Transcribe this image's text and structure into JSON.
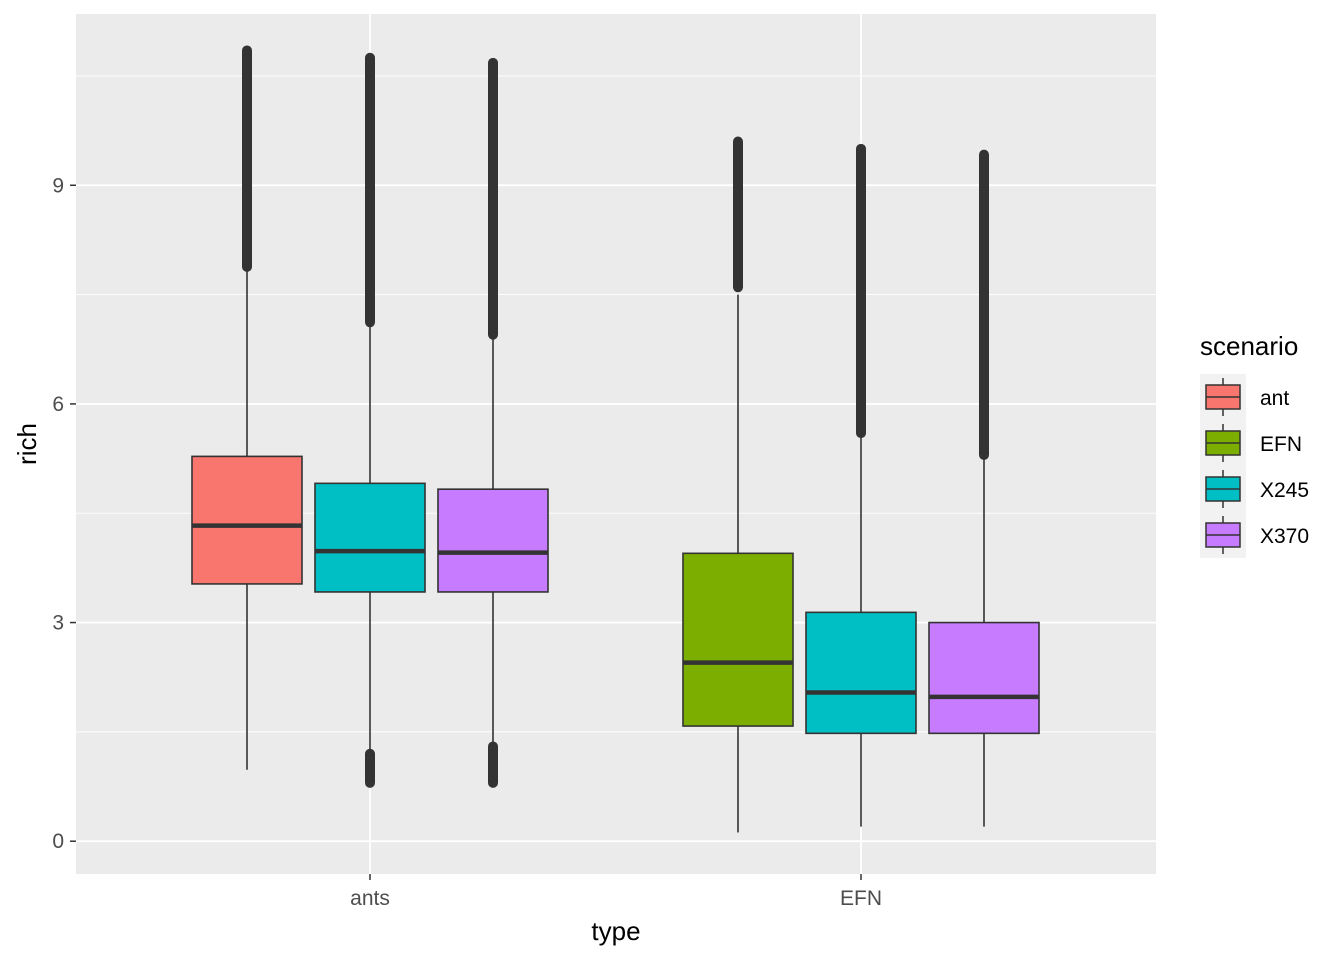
{
  "chart_data": {
    "type": "boxplot",
    "xlabel": "type",
    "ylabel": "rich",
    "ylim": [
      -0.45,
      11.35
    ],
    "y_ticks": [
      0,
      3,
      6,
      9
    ],
    "categories": [
      "ants",
      "EFN"
    ],
    "grid": true,
    "legend": {
      "title": "scenario",
      "position": "right",
      "entries": [
        {
          "name": "ant",
          "color": "#F8766D"
        },
        {
          "name": "EFN",
          "color": "#7CAE00"
        },
        {
          "name": "X245",
          "color": "#00BFC4"
        },
        {
          "name": "X370",
          "color": "#C77CFF"
        }
      ]
    },
    "boxes": [
      {
        "category": "ants",
        "scenario": "ant",
        "color": "#F8766D",
        "whisker_low": 0.98,
        "q1": 3.53,
        "median": 4.33,
        "q3": 5.28,
        "whisker_high": 7.88,
        "outliers_high": [
          7.88,
          10.85
        ],
        "outliers_low": null
      },
      {
        "category": "ants",
        "scenario": "X245",
        "color": "#00BFC4",
        "whisker_low": 1.22,
        "q1": 3.42,
        "median": 3.98,
        "q3": 4.91,
        "whisker_high": 7.12,
        "outliers_high": [
          7.12,
          10.75
        ],
        "outliers_low": [
          0.8,
          1.2
        ]
      },
      {
        "category": "ants",
        "scenario": "X370",
        "color": "#C77CFF",
        "whisker_low": 1.3,
        "q1": 3.42,
        "median": 3.96,
        "q3": 4.83,
        "whisker_high": 6.95,
        "outliers_high": [
          6.95,
          10.68
        ],
        "outliers_low": [
          0.8,
          1.3
        ]
      },
      {
        "category": "EFN",
        "scenario": "EFN",
        "color": "#7CAE00",
        "whisker_low": 0.12,
        "q1": 1.58,
        "median": 2.45,
        "q3": 3.95,
        "whisker_high": 7.5,
        "outliers_high": [
          7.6,
          9.6
        ],
        "outliers_low": null
      },
      {
        "category": "EFN",
        "scenario": "X245",
        "color": "#00BFC4",
        "whisker_low": 0.2,
        "q1": 1.48,
        "median": 2.04,
        "q3": 3.14,
        "whisker_high": 5.6,
        "outliers_high": [
          5.6,
          9.5
        ],
        "outliers_low": null
      },
      {
        "category": "EFN",
        "scenario": "X370",
        "color": "#C77CFF",
        "whisker_low": 0.2,
        "q1": 1.48,
        "median": 1.98,
        "q3": 3.0,
        "whisker_high": 5.3,
        "outliers_high": [
          5.3,
          9.42
        ],
        "outliers_low": null
      }
    ]
  }
}
